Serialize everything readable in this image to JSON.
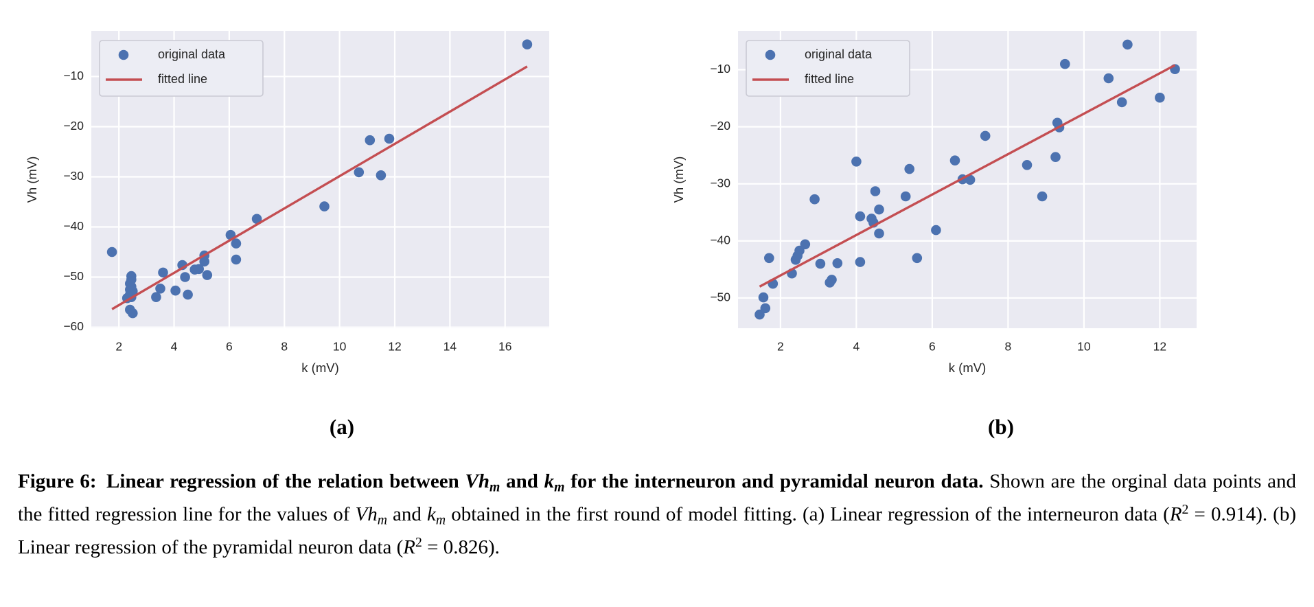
{
  "figure": {
    "subcaption_a": "(a)",
    "subcaption_b": "(b)",
    "caption_segments": [
      {
        "text": "Figure 6: Linear regression of the relation between ",
        "bold": true
      },
      {
        "text": "Vh",
        "bold": true,
        "italic": true
      },
      {
        "text": "m",
        "bold": true,
        "italic": true,
        "sub": true
      },
      {
        "text": " and ",
        "bold": true
      },
      {
        "text": "k",
        "bold": true,
        "italic": true
      },
      {
        "text": "m",
        "bold": true,
        "italic": true,
        "sub": true
      },
      {
        "text": " for the interneuron and pyramidal neuron data. ",
        "bold": true
      },
      {
        "text": "Shown are the orginal data points and the fitted regression line for the values of "
      },
      {
        "text": "Vh",
        "italic": true
      },
      {
        "text": "m",
        "italic": true,
        "sub": true
      },
      {
        "text": " and "
      },
      {
        "text": "k",
        "italic": true
      },
      {
        "text": "m",
        "italic": true,
        "sub": true
      },
      {
        "text": " obtained in the first round of model fitting. (a) Linear regression of the interneuron data ("
      },
      {
        "text": "R",
        "italic": true
      },
      {
        "text": "2",
        "sup": true
      },
      {
        "text": " = 0.914). (b) Linear regression of the pyramidal neuron data ("
      },
      {
        "text": "R",
        "italic": true
      },
      {
        "text": "2",
        "sup": true
      },
      {
        "text": " = 0.826)."
      }
    ]
  },
  "style": {
    "plot_bg": "#eaeaf2",
    "grid_color": "#ffffff",
    "dot_color": "#4c72b0",
    "line_color": "#c44e52",
    "text_color": "#262626",
    "legend_bg": "#ecedf4",
    "legend_border": "#c9c9d3"
  },
  "chart_data": [
    {
      "id": "a",
      "type": "scatter",
      "title": "",
      "xlabel": "k (mV)",
      "ylabel": "Vh (mV)",
      "xlim": [
        1.0,
        17.6
      ],
      "ylim": [
        -60.2,
        -0.9
      ],
      "xticks": [
        2,
        4,
        6,
        8,
        10,
        12,
        14,
        16
      ],
      "yticks": [
        -10,
        -20,
        -30,
        -40,
        -50,
        -60
      ],
      "grid": true,
      "r_squared": 0.914,
      "legend": {
        "position": "upper-left",
        "entries": [
          {
            "label": "original data",
            "marker": "dot",
            "color": "#4c72b0"
          },
          {
            "label": "fitted line",
            "marker": "line",
            "color": "#c44e52"
          }
        ]
      },
      "series": [
        {
          "name": "original data",
          "kind": "scatter",
          "color": "#4c72b0",
          "points": [
            [
              1.75,
              -45.0
            ],
            [
              2.45,
              -49.8
            ],
            [
              2.45,
              -50.5
            ],
            [
              2.4,
              -51.3
            ],
            [
              2.45,
              -51.9
            ],
            [
              2.4,
              -52.5
            ],
            [
              2.5,
              -52.8
            ],
            [
              2.4,
              -53.5
            ],
            [
              2.45,
              -54.0
            ],
            [
              2.3,
              -54.2
            ],
            [
              2.4,
              -56.5
            ],
            [
              2.5,
              -57.2
            ],
            [
              3.35,
              -54.0
            ],
            [
              3.5,
              -52.3
            ],
            [
              3.6,
              -49.1
            ],
            [
              4.05,
              -52.7
            ],
            [
              4.3,
              -47.6
            ],
            [
              4.4,
              -50.0
            ],
            [
              4.5,
              -53.5
            ],
            [
              4.75,
              -48.5
            ],
            [
              4.9,
              -48.4
            ],
            [
              5.1,
              -45.7
            ],
            [
              5.1,
              -46.9
            ],
            [
              5.2,
              -49.6
            ],
            [
              6.05,
              -41.6
            ],
            [
              6.25,
              -43.3
            ],
            [
              6.25,
              -46.5
            ],
            [
              7.0,
              -38.4
            ],
            [
              9.45,
              -35.9
            ],
            [
              10.7,
              -29.1
            ],
            [
              11.1,
              -22.7
            ],
            [
              11.5,
              -29.7
            ],
            [
              11.8,
              -22.4
            ],
            [
              16.8,
              -3.6
            ]
          ]
        },
        {
          "name": "fitted line",
          "kind": "line",
          "color": "#c44e52",
          "points": [
            [
              1.75,
              -56.4
            ],
            [
              16.8,
              -8.0
            ]
          ]
        }
      ],
      "layout": {
        "axes_rect": [
          133,
          45,
          800,
          478
        ]
      }
    },
    {
      "id": "b",
      "type": "scatter",
      "title": "",
      "xlabel": "k (mV)",
      "ylabel": "Vh (mV)",
      "xlim": [
        0.88,
        12.97
      ],
      "ylim": [
        -55.3,
        -3.2
      ],
      "xticks": [
        2,
        4,
        6,
        8,
        10,
        12
      ],
      "yticks": [
        -10,
        -20,
        -30,
        -40,
        -50
      ],
      "grid": true,
      "r_squared": 0.826,
      "legend": {
        "position": "upper-left",
        "entries": [
          {
            "label": "original data",
            "marker": "dot",
            "color": "#4c72b0"
          },
          {
            "label": "fitted line",
            "marker": "line",
            "color": "#c44e52"
          }
        ]
      },
      "series": [
        {
          "name": "original data",
          "kind": "scatter",
          "color": "#4c72b0",
          "points": [
            [
              1.45,
              -52.9
            ],
            [
              1.6,
              -51.8
            ],
            [
              1.55,
              -49.9
            ],
            [
              1.8,
              -47.5
            ],
            [
              1.7,
              -43.0
            ],
            [
              2.3,
              -45.7
            ],
            [
              2.4,
              -43.3
            ],
            [
              2.45,
              -42.6
            ],
            [
              2.5,
              -41.7
            ],
            [
              2.65,
              -40.6
            ],
            [
              2.9,
              -32.7
            ],
            [
              3.05,
              -44.0
            ],
            [
              3.3,
              -47.3
            ],
            [
              3.35,
              -46.8
            ],
            [
              3.5,
              -43.9
            ],
            [
              4.0,
              -26.1
            ],
            [
              4.1,
              -35.7
            ],
            [
              4.1,
              -43.7
            ],
            [
              4.4,
              -36.1
            ],
            [
              4.45,
              -36.8
            ],
            [
              4.5,
              -31.3
            ],
            [
              4.6,
              -34.5
            ],
            [
              4.6,
              -38.7
            ],
            [
              5.3,
              -32.2
            ],
            [
              5.4,
              -27.4
            ],
            [
              5.6,
              -43.0
            ],
            [
              6.1,
              -38.1
            ],
            [
              6.6,
              -25.9
            ],
            [
              6.8,
              -29.2
            ],
            [
              7.0,
              -29.3
            ],
            [
              7.4,
              -21.6
            ],
            [
              8.5,
              -26.7
            ],
            [
              8.9,
              -32.2
            ],
            [
              9.25,
              -25.3
            ],
            [
              9.3,
              -19.3
            ],
            [
              9.35,
              -20.1
            ],
            [
              9.5,
              -9.0
            ],
            [
              10.65,
              -11.5
            ],
            [
              11.0,
              -15.7
            ],
            [
              11.15,
              -5.6
            ],
            [
              12.0,
              -14.9
            ],
            [
              12.4,
              -9.9
            ]
          ]
        },
        {
          "name": "fitted line",
          "kind": "line",
          "color": "#c44e52",
          "points": [
            [
              1.45,
              -48.0
            ],
            [
              12.4,
              -9.2
            ]
          ]
        }
      ],
      "layout": {
        "axes_rect": [
          1075,
          45,
          1743,
          478
        ]
      }
    }
  ]
}
